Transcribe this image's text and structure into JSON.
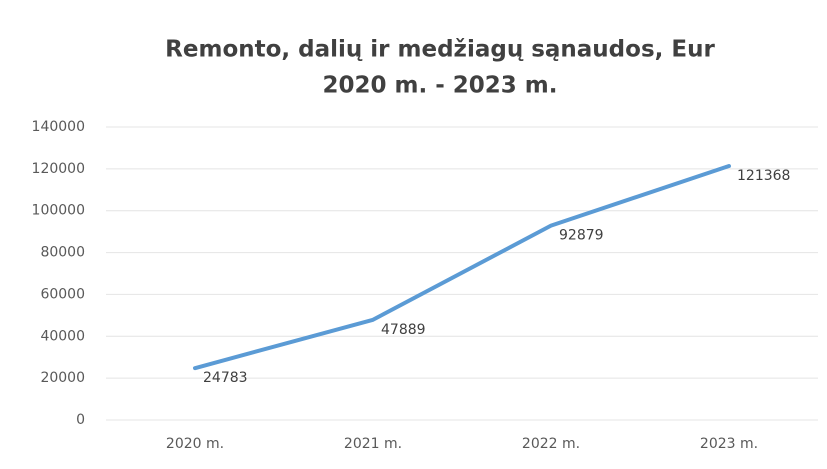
{
  "chart_data": {
    "type": "line",
    "title": [
      "Remonto, dalių ir medžiagų sąnaudos, Eur",
      "2020 m. - 2023 m."
    ],
    "categories": [
      "2020 m.",
      "2021 m.",
      "2022 m.",
      "2023 m."
    ],
    "series": [
      {
        "color": "#5b9bd5",
        "values": [
          24783,
          47889,
          92879,
          121368
        ]
      }
    ],
    "ylim": [
      0,
      140000
    ],
    "yticks": [
      0,
      20000,
      40000,
      60000,
      80000,
      100000,
      120000,
      140000
    ],
    "grid": true,
    "data_labels": true
  }
}
